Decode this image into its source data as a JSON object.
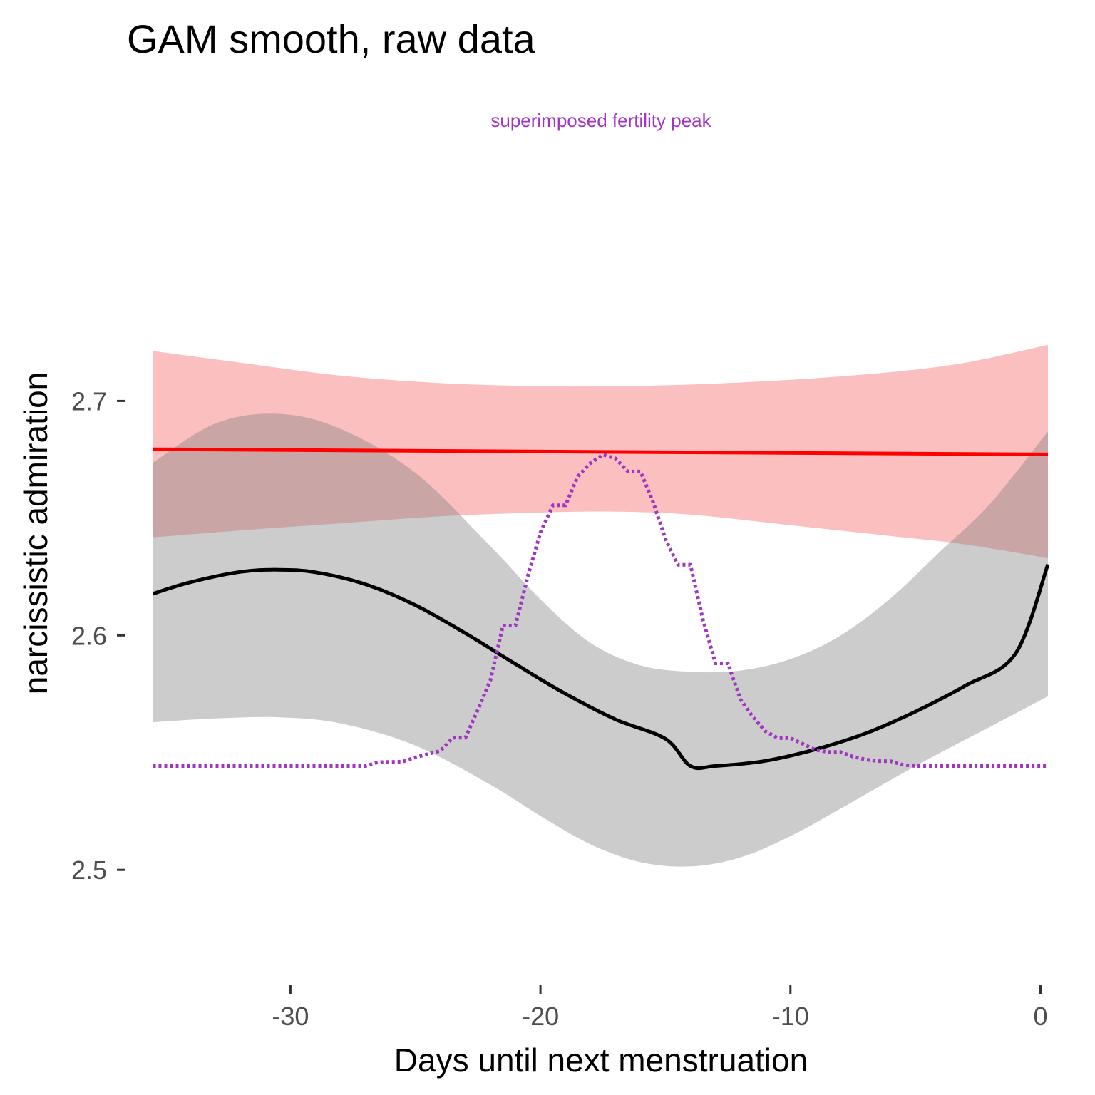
{
  "chart_data": {
    "type": "line",
    "title": "GAM smooth, raw data",
    "xlabel": "Days until next menstruation",
    "ylabel": "narcissistic admiration",
    "xlim": [
      -36.2,
      0.3
    ],
    "ylim": [
      2.4575,
      2.7585
    ],
    "x_ticks": [
      -30,
      -20,
      -10,
      0
    ],
    "x_tick_labels": [
      "-30",
      "-20",
      "-10",
      "0"
    ],
    "y_ticks": [
      2.5,
      2.6,
      2.7
    ],
    "y_tick_labels": [
      "2.5",
      "2.6",
      "2.7"
    ],
    "grid": false,
    "legend": "none",
    "annotation": {
      "text": "superimposed fertility peak",
      "color": "#a035c0"
    },
    "series": [
      {
        "kind": "ribbon",
        "color": "#fbbfbf",
        "x": [
          -35.5,
          -32,
          -28,
          -24,
          -20,
          -17,
          -14,
          -10,
          -6,
          -3,
          0.3
        ],
        "lower": [
          2.6418,
          2.6448,
          2.6478,
          2.6508,
          2.6524,
          2.6528,
          2.6515,
          2.647,
          2.6424,
          2.6388,
          2.6329
        ],
        "upper": [
          2.7213,
          2.7163,
          2.7108,
          2.7076,
          2.7063,
          2.7063,
          2.707,
          2.709,
          2.7123,
          2.7163,
          2.7239
        ]
      },
      {
        "kind": "ribbon",
        "color": "#7f7f7f",
        "opacity": 0.4,
        "x": [
          -35.5,
          -33,
          -30.5,
          -28,
          -25,
          -22,
          -20,
          -18,
          -16,
          -14,
          -12,
          -10,
          -8,
          -6,
          -4,
          -2,
          0.3
        ],
        "lower": [
          2.563,
          2.5646,
          2.5651,
          2.5625,
          2.553,
          2.5363,
          2.523,
          2.5109,
          2.5033,
          2.5015,
          2.5053,
          2.5144,
          2.5261,
          2.5383,
          2.55,
          2.5611,
          2.574
        ],
        "upper": [
          2.6737,
          2.6904,
          2.6945,
          2.6881,
          2.6693,
          2.638,
          2.6154,
          2.5968,
          2.5872,
          2.5845,
          2.585,
          2.5899,
          2.5999,
          2.6158,
          2.6359,
          2.6563,
          2.687
        ]
      },
      {
        "name": "",
        "kind": "line",
        "color": "#ff0000",
        "x": [
          -35.5,
          0.3
        ],
        "y": [
          2.6794,
          2.6772
        ]
      },
      {
        "name": "",
        "kind": "line",
        "color": "#000000",
        "x": [
          -35.5,
          -34,
          -32,
          -30.5,
          -29,
          -27,
          -25,
          -23,
          -21,
          -19,
          -17,
          -15,
          -14,
          -13,
          -11,
          -9,
          -7,
          -5,
          -3,
          -1,
          0.3
        ],
        "y": [
          2.6178,
          2.6227,
          2.6271,
          2.628,
          2.6269,
          2.6218,
          2.6129,
          2.6009,
          2.5878,
          2.5751,
          2.5642,
          2.5559,
          2.5443,
          2.5443,
          2.5465,
          2.5514,
          2.5582,
          2.5675,
          2.5786,
          2.5922,
          2.6303
        ]
      },
      {
        "name": "",
        "kind": "line",
        "style": "dotted",
        "color": "#a035c0",
        "x": [
          -35.5,
          -27,
          -26.5,
          -25.5,
          -25,
          -24,
          -23.5,
          -23,
          -22.5,
          -22,
          -21.5,
          -21,
          -20.5,
          -20,
          -19.5,
          -19,
          -18.5,
          -18,
          -17.5,
          -17,
          -16.5,
          -16,
          -15.5,
          -15,
          -14.5,
          -14,
          -13.5,
          -13,
          -12.5,
          -12,
          -11.5,
          -11,
          -10.5,
          -10,
          -9.5,
          -9,
          -8.5,
          -8,
          -7.5,
          -7,
          -6.5,
          -6,
          -5.5,
          -5,
          -4.5,
          -4,
          -3.5,
          0.3
        ],
        "y": [
          2.5443,
          2.5443,
          2.5459,
          2.5462,
          2.548,
          2.5508,
          2.5564,
          2.5564,
          2.5683,
          2.581,
          2.6042,
          2.6042,
          2.6255,
          2.6439,
          2.6555,
          2.6555,
          2.6679,
          2.6735,
          2.6771,
          2.6755,
          2.6699,
          2.6699,
          2.6571,
          2.6411,
          2.6301,
          2.6301,
          2.6067,
          2.5881,
          2.5881,
          2.5727,
          2.5652,
          2.5591,
          2.5562,
          2.5562,
          2.5537,
          2.5512,
          2.5503,
          2.5503,
          2.5483,
          2.5471,
          2.5464,
          2.5464,
          2.5448,
          2.5443,
          2.5443,
          2.5443,
          2.5443,
          2.5443
        ]
      }
    ]
  }
}
